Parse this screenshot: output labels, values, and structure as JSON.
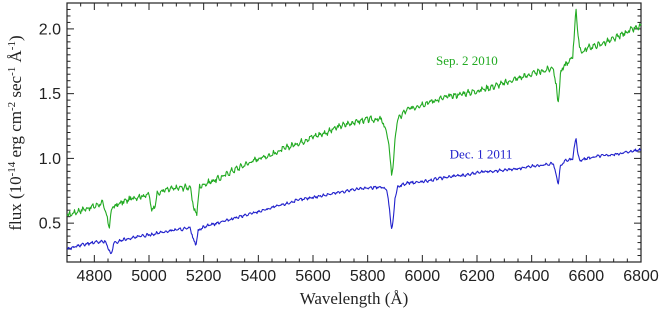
{
  "chart_data": {
    "type": "line",
    "title": "",
    "xlabel": "Wavelength (Å)",
    "ylabel": {
      "prefix": "flux (10",
      "e1": "-14",
      "mid1": " erg cm",
      "e2": "-2",
      "mid2": " sec",
      "e3": "-1",
      "mid3": " Å",
      "e4": "-1",
      "suffix": ")"
    },
    "xlim": [
      4700,
      6800
    ],
    "ylim": [
      0.2,
      2.2
    ],
    "x_ticks": [
      4800,
      5000,
      5200,
      5400,
      5600,
      5800,
      6000,
      6200,
      6400,
      6600,
      6800
    ],
    "x_tick_labels": [
      "4800",
      "5000",
      "5200",
      "5400",
      "5600",
      "5800",
      "6000",
      "6200",
      "6400",
      "6600",
      "6800"
    ],
    "y_ticks": [
      0.5,
      1.0,
      1.5,
      2.0
    ],
    "y_tick_labels": [
      "0.5",
      "1.0",
      "1.5",
      "2.0"
    ],
    "grid": false,
    "legend": "none",
    "series": [
      {
        "name": "Sep. 2 2010",
        "color": "#22aa22",
        "x": [
          4700,
          4750,
          4800,
          4830,
          4845,
          4855,
          4865,
          4900,
          4950,
          5000,
          5010,
          5018,
          5030,
          5050,
          5100,
          5150,
          5165,
          5175,
          5185,
          5200,
          5250,
          5270,
          5300,
          5350,
          5400,
          5450,
          5500,
          5550,
          5600,
          5650,
          5700,
          5750,
          5800,
          5850,
          5870,
          5880,
          5888,
          5894,
          5900,
          5910,
          5930,
          5950,
          6000,
          6050,
          6100,
          6150,
          6200,
          6250,
          6300,
          6350,
          6400,
          6450,
          6480,
          6490,
          6497,
          6505,
          6520,
          6540,
          6550,
          6556,
          6562,
          6568,
          6575,
          6590,
          6600,
          6650,
          6700,
          6750,
          6800
        ],
        "y": [
          0.56,
          0.6,
          0.63,
          0.66,
          0.55,
          0.48,
          0.62,
          0.66,
          0.7,
          0.72,
          0.6,
          0.62,
          0.72,
          0.75,
          0.77,
          0.78,
          0.6,
          0.58,
          0.78,
          0.8,
          0.84,
          0.86,
          0.9,
          0.95,
          1.0,
          1.03,
          1.08,
          1.12,
          1.17,
          1.2,
          1.25,
          1.28,
          1.3,
          1.3,
          1.2,
          1.05,
          0.88,
          0.95,
          1.15,
          1.3,
          1.35,
          1.38,
          1.42,
          1.45,
          1.48,
          1.5,
          1.52,
          1.55,
          1.58,
          1.62,
          1.65,
          1.68,
          1.7,
          1.55,
          1.42,
          1.65,
          1.72,
          1.75,
          1.8,
          1.95,
          2.17,
          1.98,
          1.85,
          1.82,
          1.85,
          1.88,
          1.92,
          1.98,
          2.02
        ]
      },
      {
        "name": "Dec. 1 2011",
        "color": "#2222cc",
        "x": [
          4700,
          4750,
          4800,
          4840,
          4852,
          4861,
          4870,
          4900,
          4950,
          5000,
          5050,
          5100,
          5150,
          5165,
          5172,
          5180,
          5200,
          5250,
          5300,
          5350,
          5400,
          5450,
          5500,
          5550,
          5600,
          5650,
          5700,
          5750,
          5800,
          5850,
          5870,
          5880,
          5888,
          5894,
          5900,
          5910,
          5930,
          5950,
          6000,
          6050,
          6100,
          6150,
          6200,
          6250,
          6300,
          6350,
          6400,
          6450,
          6480,
          6490,
          6497,
          6505,
          6520,
          6540,
          6550,
          6556,
          6562,
          6568,
          6575,
          6600,
          6650,
          6700,
          6750,
          6800
        ],
        "y": [
          0.3,
          0.33,
          0.35,
          0.36,
          0.3,
          0.25,
          0.34,
          0.37,
          0.39,
          0.41,
          0.43,
          0.45,
          0.46,
          0.36,
          0.33,
          0.44,
          0.47,
          0.5,
          0.53,
          0.56,
          0.59,
          0.62,
          0.65,
          0.68,
          0.7,
          0.72,
          0.74,
          0.76,
          0.77,
          0.78,
          0.76,
          0.6,
          0.45,
          0.52,
          0.7,
          0.78,
          0.8,
          0.81,
          0.82,
          0.84,
          0.86,
          0.87,
          0.89,
          0.9,
          0.91,
          0.92,
          0.94,
          0.95,
          0.96,
          0.86,
          0.8,
          0.94,
          0.98,
          0.99,
          1.0,
          1.08,
          1.17,
          1.05,
          0.98,
          1.0,
          1.02,
          1.03,
          1.05,
          1.07
        ]
      }
    ],
    "annotations": [
      {
        "text": "Sep. 2 2010",
        "x": 6050,
        "y": 1.72,
        "color": "#22aa22"
      },
      {
        "text": "Dec. 1 2011",
        "x": 6100,
        "y": 1.0,
        "color": "#2222cc"
      }
    ]
  }
}
